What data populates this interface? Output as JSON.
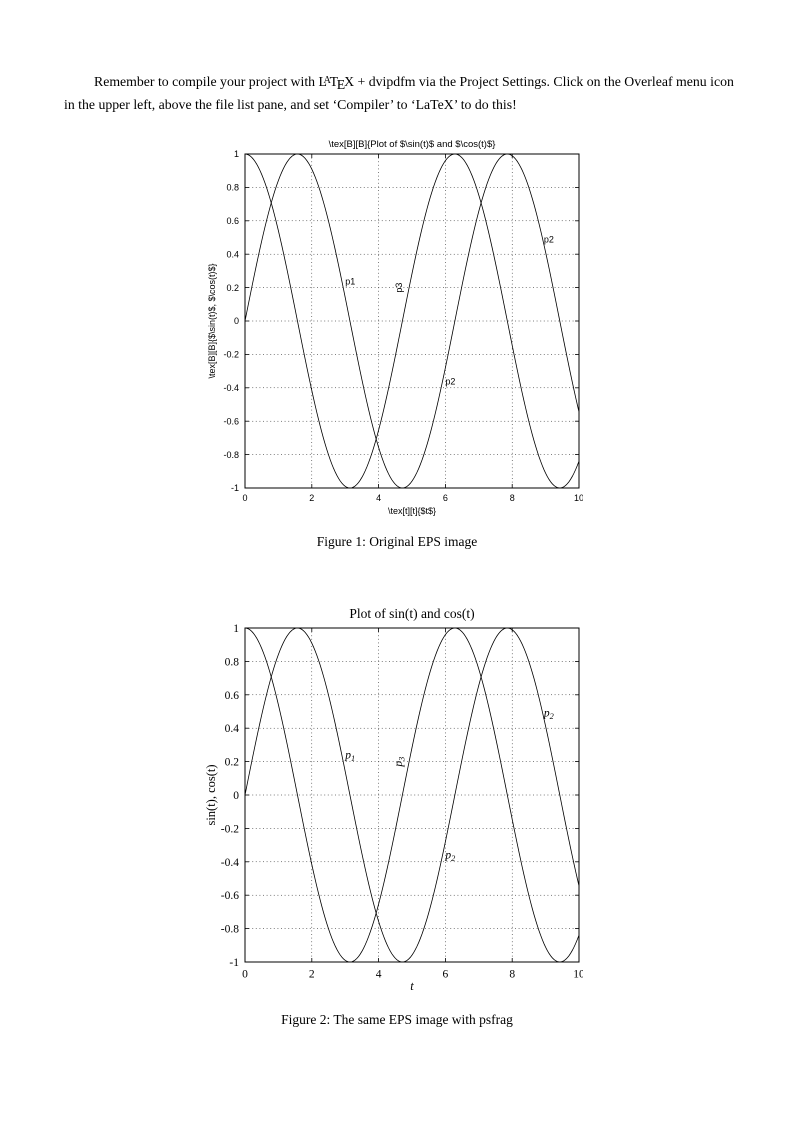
{
  "document": {
    "paragraph_segments": [
      {
        "text": "Remember to compile your project with "
      },
      {
        "text": "LaTeX",
        "style": "latex-logo"
      },
      {
        "text": " + dvipdfm via the Project Settings. Click on the Overleaf menu icon in the upper left, above the file list pane, and set ‘Compiler’ to ‘LaTeX’ to do this!"
      }
    ]
  },
  "figures": [
    {
      "caption": "Figure 1: Original EPS image"
    },
    {
      "caption": "Figure 2: The same EPS image with psfrag"
    }
  ],
  "chart_data": [
    {
      "type": "line",
      "title": "\\tex[B][B]{Plot of $\\sin(t)$ and $\\cos(t)$}",
      "xlabel": "\\tex[t][t]{$t$}",
      "xlabel_italic": false,
      "ylabel": "\\tex[B][B]{$\\sin(t)$, $\\cos(t)$}",
      "xlim": [
        0,
        10
      ],
      "ylim": [
        -1,
        1
      ],
      "xticks": [
        0,
        2,
        4,
        6,
        8,
        10
      ],
      "xtick_labels": [
        "0",
        "2",
        "4",
        "6",
        "8",
        "10"
      ],
      "yticks": [
        -1,
        -0.8,
        -0.6,
        -0.4,
        -0.2,
        0,
        0.2,
        0.4,
        0.6,
        0.8,
        1
      ],
      "ytick_labels": [
        "-1",
        "-0.8",
        "-0.6",
        "-0.4",
        "-0.2",
        "0",
        "0.2",
        "0.4",
        "0.6",
        "0.8",
        "1"
      ],
      "grid": true,
      "legend": "none",
      "text_style": "matlab-sans",
      "sample_step": 0.05,
      "x_range": [
        0,
        10
      ],
      "series": [
        {
          "name": "sin(t)",
          "fn": "sin"
        },
        {
          "name": "cos(t)",
          "fn": "cos"
        }
      ],
      "annotations": [
        {
          "x": 3.0,
          "y": 0.22,
          "label": "p1",
          "rotate": 0
        },
        {
          "x": 4.7,
          "y": 0.17,
          "label": "p3",
          "rotate": -90
        },
        {
          "x": 6.0,
          "y": -0.38,
          "label": "p2",
          "rotate": 0
        },
        {
          "x": 8.95,
          "y": 0.47,
          "label": "p2",
          "rotate": 0
        }
      ]
    },
    {
      "type": "line",
      "title": "Plot of sin(t) and cos(t)",
      "xlabel": "t",
      "xlabel_italic": true,
      "ylabel": "sin(t), cos(t)",
      "xlim": [
        0,
        10
      ],
      "ylim": [
        -1,
        1
      ],
      "xticks": [
        0,
        2,
        4,
        6,
        8,
        10
      ],
      "xtick_labels": [
        "0",
        "2",
        "4",
        "6",
        "8",
        "10"
      ],
      "yticks": [
        -1,
        -0.8,
        -0.6,
        -0.4,
        -0.2,
        0,
        0.2,
        0.4,
        0.6,
        0.8,
        1
      ],
      "ytick_labels": [
        "-1",
        "-0.8",
        "-0.6",
        "-0.4",
        "-0.2",
        "0",
        "0.2",
        "0.4",
        "0.6",
        "0.8",
        "1"
      ],
      "grid": true,
      "legend": "none",
      "text_style": "latex-serif",
      "sample_step": 0.05,
      "x_range": [
        0,
        10
      ],
      "series": [
        {
          "name": "sin(t)",
          "fn": "sin"
        },
        {
          "name": "cos(t)",
          "fn": "cos"
        }
      ],
      "annotations": [
        {
          "x": 3.0,
          "y": 0.22,
          "label": "p",
          "sub": "1",
          "rotate": 0
        },
        {
          "x": 4.7,
          "y": 0.17,
          "label": "p",
          "sub": "3",
          "rotate": -90
        },
        {
          "x": 6.0,
          "y": -0.38,
          "label": "p",
          "sub": "2",
          "rotate": 0
        },
        {
          "x": 8.95,
          "y": 0.47,
          "label": "p",
          "sub": "2",
          "rotate": 0
        }
      ]
    }
  ]
}
